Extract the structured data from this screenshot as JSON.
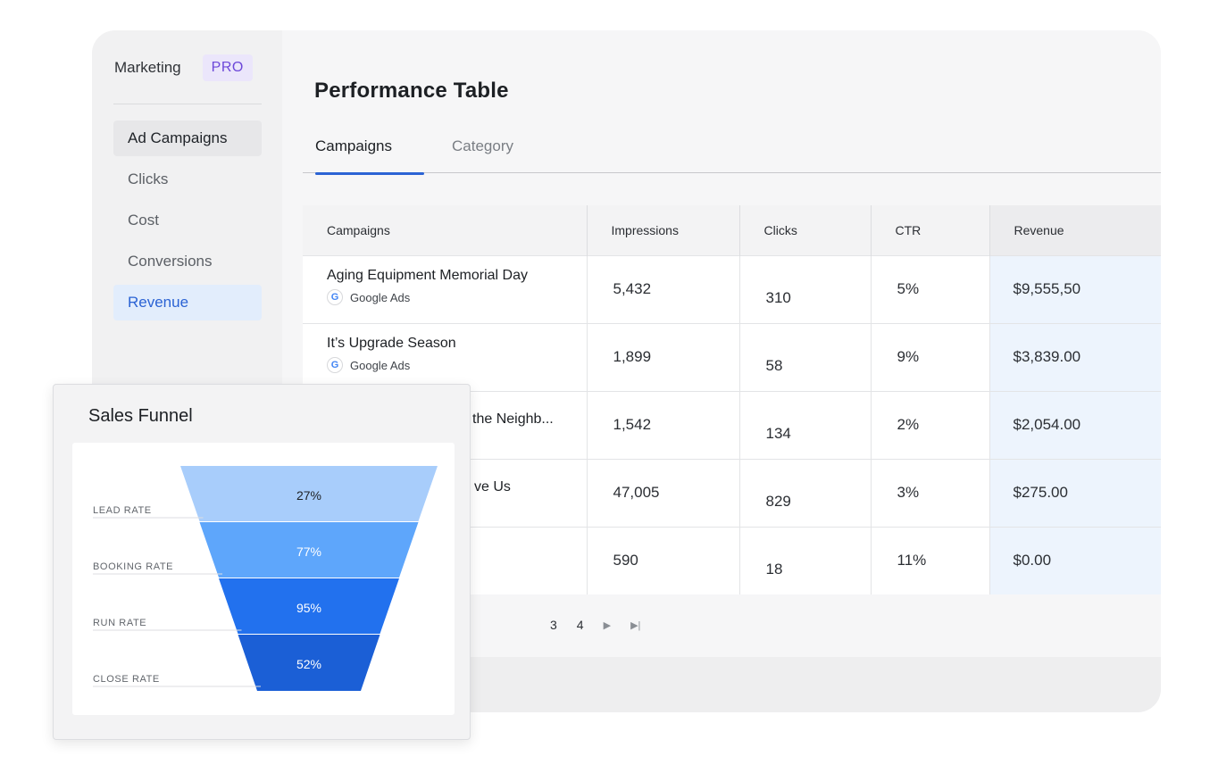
{
  "sidebar": {
    "brand": "Marketing",
    "badge": "PRO",
    "items": [
      {
        "label": "Ad Campaigns"
      },
      {
        "label": "Clicks"
      },
      {
        "label": "Cost"
      },
      {
        "label": "Conversions"
      },
      {
        "label": "Revenue"
      }
    ]
  },
  "main": {
    "title": "Performance Table",
    "tabs": [
      {
        "label": "Campaigns"
      },
      {
        "label": "Category"
      }
    ],
    "table": {
      "headers": [
        "Campaigns",
        "Impressions",
        "Clicks",
        "CTR",
        "Revenue"
      ],
      "rows": [
        {
          "name": "Aging Equipment Memorial Day",
          "source": "Google Ads",
          "impressions": "5,432",
          "clicks": "310",
          "ctr": "5%",
          "revenue": "$9,555,50"
        },
        {
          "name": "It’s Upgrade Season",
          "source": "Google Ads",
          "impressions": "1,899",
          "clicks": "58",
          "ctr": "9%",
          "revenue": "$3,839.00"
        },
        {
          "name": "the Neighb...",
          "source": "",
          "impressions": "1,542",
          "clicks": "134",
          "ctr": "2%",
          "revenue": "$2,054.00"
        },
        {
          "name": "ve Us",
          "source": "",
          "impressions": "47,005",
          "clicks": "829",
          "ctr": "3%",
          "revenue": "$275.00"
        },
        {
          "name": "",
          "source": "",
          "impressions": "590",
          "clicks": "18",
          "ctr": "11%",
          "revenue": "$0.00"
        }
      ]
    },
    "pagination": {
      "pages": [
        "3",
        "4"
      ],
      "next": "▶",
      "last": "▶|"
    }
  },
  "funnel": {
    "title": "Sales Funnel",
    "stages": [
      {
        "label": "LEAD RATE",
        "value": "27%",
        "color": "#a8cdfb",
        "text_color": "#1d2024"
      },
      {
        "label": "BOOKING RATE",
        "value": "77%",
        "color": "#5ea6fb",
        "text_color": "#ffffff"
      },
      {
        "label": "RUN RATE",
        "value": "95%",
        "color": "#2271ee",
        "text_color": "#ffffff"
      },
      {
        "label": "CLOSE RATE",
        "value": "52%",
        "color": "#1b5fd6",
        "text_color": "#ffffff"
      }
    ]
  },
  "icons": {
    "source_icon": "google-g-icon"
  }
}
